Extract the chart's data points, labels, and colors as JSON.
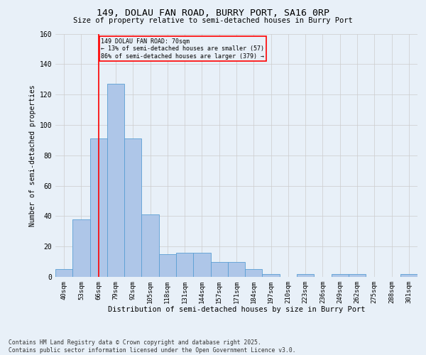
{
  "title": "149, DOLAU FAN ROAD, BURRY PORT, SA16 0RP",
  "subtitle": "Size of property relative to semi-detached houses in Burry Port",
  "xlabel": "Distribution of semi-detached houses by size in Burry Port",
  "ylabel": "Number of semi-detached properties",
  "categories": [
    "40sqm",
    "53sqm",
    "66sqm",
    "79sqm",
    "92sqm",
    "105sqm",
    "118sqm",
    "131sqm",
    "144sqm",
    "157sqm",
    "171sqm",
    "184sqm",
    "197sqm",
    "210sqm",
    "223sqm",
    "236sqm",
    "249sqm",
    "262sqm",
    "275sqm",
    "288sqm",
    "301sqm"
  ],
  "values": [
    5,
    38,
    91,
    127,
    91,
    41,
    15,
    16,
    16,
    10,
    10,
    5,
    2,
    0,
    2,
    0,
    2,
    2,
    0,
    0,
    2
  ],
  "bar_color": "#aec6e8",
  "bar_edge_color": "#5a9fd4",
  "highlight_idx": 2,
  "highlight_line_label": "149 DOLAU FAN ROAD: 70sqm",
  "annotation_line1": "← 13% of semi-detached houses are smaller (57)",
  "annotation_line2": "86% of semi-detached houses are larger (379) →",
  "box_color": "red",
  "ylim": [
    0,
    160
  ],
  "yticks": [
    0,
    20,
    40,
    60,
    80,
    100,
    120,
    140,
    160
  ],
  "grid_color": "#cccccc",
  "background_color": "#e8f0f8",
  "footer_line1": "Contains HM Land Registry data © Crown copyright and database right 2025.",
  "footer_line2": "Contains public sector information licensed under the Open Government Licence v3.0."
}
